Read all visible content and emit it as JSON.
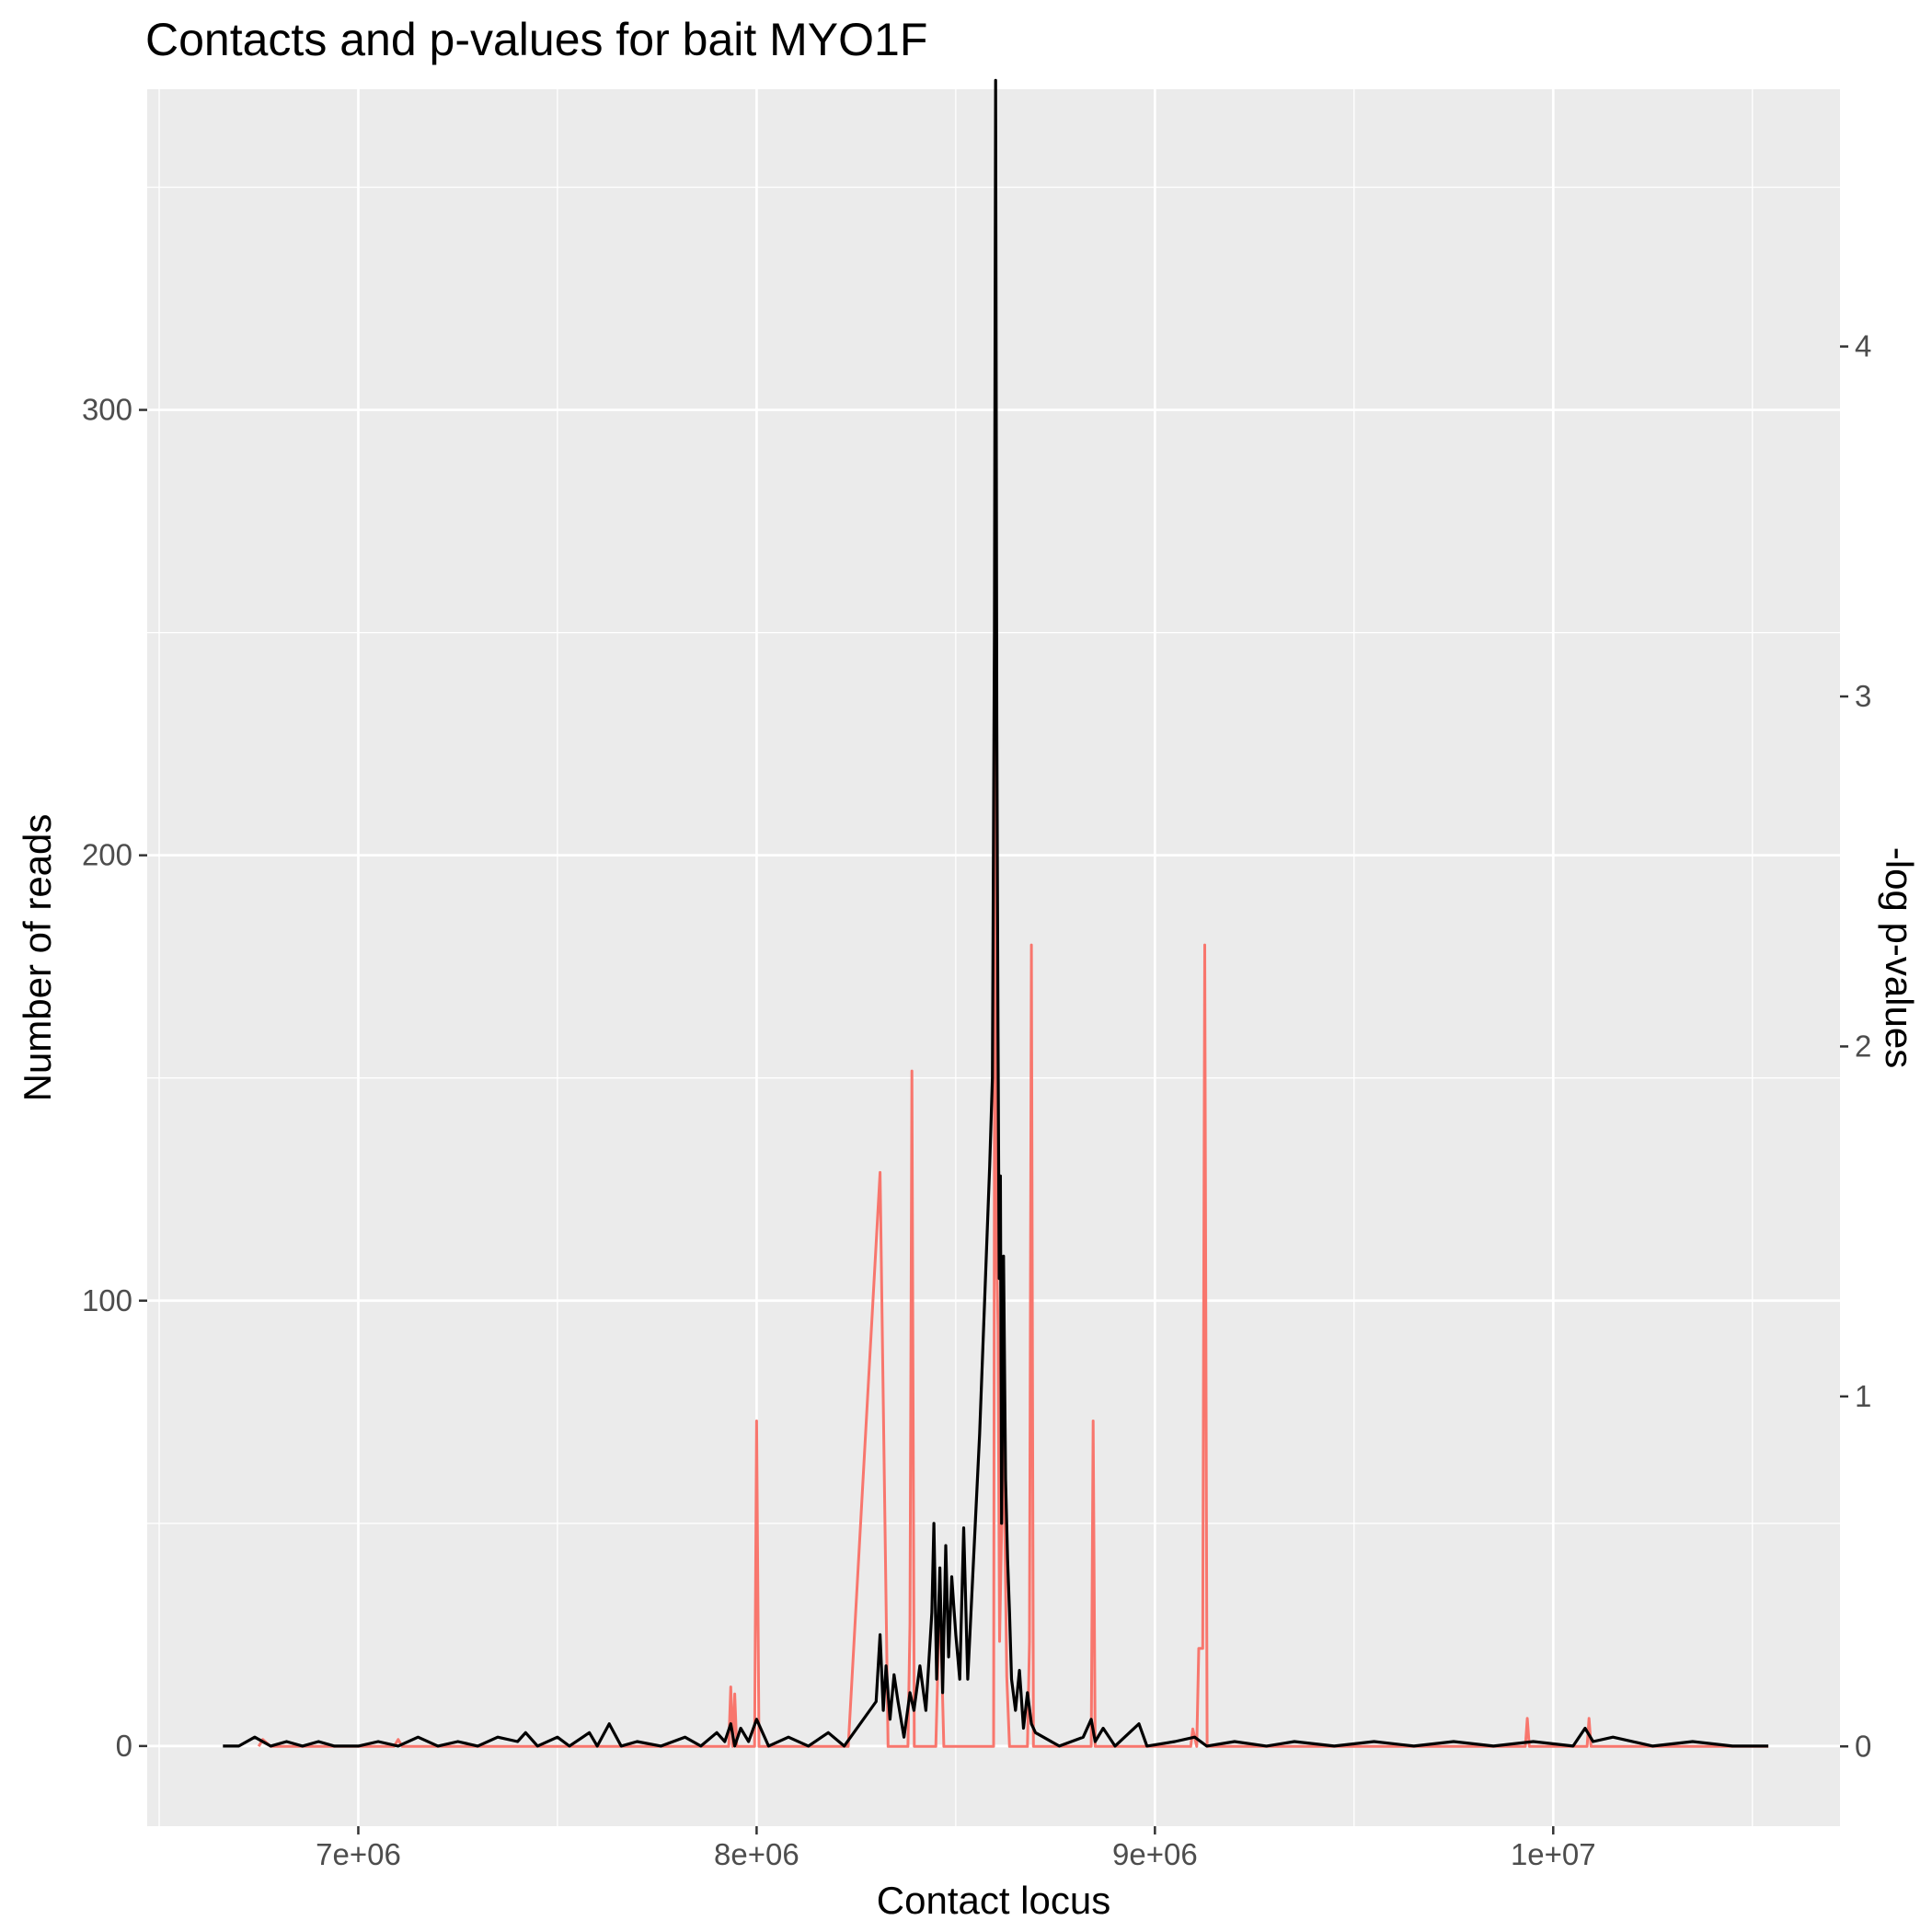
{
  "chart_data": {
    "type": "line",
    "title": "Contacts and p-values for bait MYO1F",
    "xlabel": "Contact locus",
    "ylabel": "Number of reads",
    "y2label": "-log p-values",
    "xlim": [
      6470000,
      10720000
    ],
    "ylim": [
      -18,
      372
    ],
    "y2lim": [
      -0.228,
      4.735
    ],
    "x_ticks": [
      7000000,
      8000000,
      9000000,
      10000000
    ],
    "x_tick_labels": [
      "7e+06",
      "8e+06",
      "9e+06",
      "1e+07"
    ],
    "y_ticks": [
      0,
      100,
      200,
      300
    ],
    "y_tick_labels": [
      "0",
      "100",
      "200",
      "300"
    ],
    "y2_ticks": [
      0,
      1,
      2,
      3,
      4
    ],
    "y2_tick_labels": [
      "0",
      "1",
      "2",
      "3",
      "4"
    ],
    "grid": true,
    "series": [
      {
        "axis": "right",
        "color": "#f8766d",
        "points": [
          [
            6750000,
            0
          ],
          [
            6760000,
            0.02
          ],
          [
            6780000,
            0
          ],
          [
            7090000,
            0
          ],
          [
            7100000,
            0.02
          ],
          [
            7110000,
            0
          ],
          [
            7930000,
            0
          ],
          [
            7935000,
            0.17
          ],
          [
            7940000,
            0
          ],
          [
            7945000,
            0.15
          ],
          [
            7950000,
            0
          ],
          [
            7995000,
            0
          ],
          [
            8000000,
            0.93
          ],
          [
            8006000,
            0
          ],
          [
            8230000,
            0
          ],
          [
            8310000,
            1.64
          ],
          [
            8330000,
            0
          ],
          [
            8380000,
            0
          ],
          [
            8385000,
            0.35
          ],
          [
            8390000,
            1.93
          ],
          [
            8396000,
            0
          ],
          [
            8450000,
            0
          ],
          [
            8460000,
            0.45
          ],
          [
            8470000,
            0
          ],
          [
            8595000,
            0
          ],
          [
            8600000,
            4.15
          ],
          [
            8603000,
            1.4
          ],
          [
            8606000,
            1.2
          ],
          [
            8610000,
            0.3
          ],
          [
            8620000,
            0.92
          ],
          [
            8628000,
            0.2
          ],
          [
            8635000,
            0
          ],
          [
            8680000,
            0
          ],
          [
            8685000,
            0.3
          ],
          [
            8690000,
            2.29
          ],
          [
            8695000,
            0
          ],
          [
            8840000,
            0
          ],
          [
            8845000,
            0.93
          ],
          [
            8850000,
            0
          ],
          [
            9090000,
            0
          ],
          [
            9095000,
            0.05
          ],
          [
            9105000,
            0
          ],
          [
            9110000,
            0.28
          ],
          [
            9120000,
            0.28
          ],
          [
            9125000,
            2.29
          ],
          [
            9131000,
            0
          ],
          [
            9930000,
            0
          ],
          [
            9935000,
            0.08
          ],
          [
            9940000,
            0
          ],
          [
            10085000,
            0
          ],
          [
            10090000,
            0.08
          ],
          [
            10095000,
            0
          ],
          [
            10540000,
            0
          ]
        ]
      },
      {
        "axis": "left",
        "color": "#000000",
        "points": [
          [
            6660000,
            0
          ],
          [
            6700000,
            0
          ],
          [
            6740000,
            2
          ],
          [
            6780000,
            0
          ],
          [
            6820000,
            1
          ],
          [
            6860000,
            0
          ],
          [
            6900000,
            1
          ],
          [
            6940000,
            0
          ],
          [
            7000000,
            0
          ],
          [
            7050000,
            1
          ],
          [
            7100000,
            0
          ],
          [
            7150000,
            2
          ],
          [
            7200000,
            0
          ],
          [
            7250000,
            1
          ],
          [
            7300000,
            0
          ],
          [
            7350000,
            2
          ],
          [
            7400000,
            1
          ],
          [
            7420000,
            3
          ],
          [
            7450000,
            0
          ],
          [
            7500000,
            2
          ],
          [
            7530000,
            0
          ],
          [
            7580000,
            3
          ],
          [
            7600000,
            0
          ],
          [
            7630000,
            5
          ],
          [
            7660000,
            0
          ],
          [
            7700000,
            1
          ],
          [
            7760000,
            0
          ],
          [
            7820000,
            2
          ],
          [
            7860000,
            0
          ],
          [
            7900000,
            3
          ],
          [
            7920000,
            1
          ],
          [
            7935000,
            5
          ],
          [
            7945000,
            0
          ],
          [
            7960000,
            4
          ],
          [
            7980000,
            1
          ],
          [
            8000000,
            6
          ],
          [
            8030000,
            0
          ],
          [
            8080000,
            2
          ],
          [
            8130000,
            0
          ],
          [
            8180000,
            3
          ],
          [
            8220000,
            0
          ],
          [
            8300000,
            10
          ],
          [
            8310000,
            25
          ],
          [
            8318000,
            8
          ],
          [
            8325000,
            18
          ],
          [
            8335000,
            6
          ],
          [
            8345000,
            16
          ],
          [
            8355000,
            10
          ],
          [
            8370000,
            2
          ],
          [
            8385000,
            12
          ],
          [
            8395000,
            8
          ],
          [
            8410000,
            18
          ],
          [
            8425000,
            8
          ],
          [
            8440000,
            30
          ],
          [
            8445000,
            50
          ],
          [
            8452000,
            15
          ],
          [
            8460000,
            40
          ],
          [
            8467000,
            12
          ],
          [
            8475000,
            45
          ],
          [
            8482000,
            20
          ],
          [
            8490000,
            38
          ],
          [
            8500000,
            25
          ],
          [
            8510000,
            15
          ],
          [
            8520000,
            49
          ],
          [
            8530000,
            15
          ],
          [
            8560000,
            70
          ],
          [
            8585000,
            130
          ],
          [
            8592000,
            150
          ],
          [
            8597000,
            250
          ],
          [
            8600000,
            374
          ],
          [
            8603000,
            230
          ],
          [
            8606000,
            160
          ],
          [
            8609000,
            105
          ],
          [
            8612000,
            128
          ],
          [
            8615000,
            50
          ],
          [
            8620000,
            110
          ],
          [
            8625000,
            60
          ],
          [
            8630000,
            42
          ],
          [
            8635000,
            30
          ],
          [
            8640000,
            15
          ],
          [
            8650000,
            8
          ],
          [
            8660000,
            17
          ],
          [
            8670000,
            4
          ],
          [
            8680000,
            12
          ],
          [
            8690000,
            5
          ],
          [
            8700000,
            3
          ],
          [
            8760000,
            0
          ],
          [
            8820000,
            2
          ],
          [
            8840000,
            6
          ],
          [
            8850000,
            1
          ],
          [
            8870000,
            4
          ],
          [
            8900000,
            0
          ],
          [
            8960000,
            5
          ],
          [
            8980000,
            0
          ],
          [
            9050000,
            1
          ],
          [
            9100000,
            2
          ],
          [
            9130000,
            0
          ],
          [
            9200000,
            1
          ],
          [
            9280000,
            0
          ],
          [
            9350000,
            1
          ],
          [
            9450000,
            0
          ],
          [
            9550000,
            1
          ],
          [
            9650000,
            0
          ],
          [
            9750000,
            1
          ],
          [
            9850000,
            0
          ],
          [
            9950000,
            1
          ],
          [
            10050000,
            0
          ],
          [
            10080000,
            4
          ],
          [
            10100000,
            1
          ],
          [
            10150000,
            2
          ],
          [
            10250000,
            0
          ],
          [
            10350000,
            1
          ],
          [
            10450000,
            0
          ],
          [
            10540000,
            0
          ]
        ]
      }
    ]
  }
}
